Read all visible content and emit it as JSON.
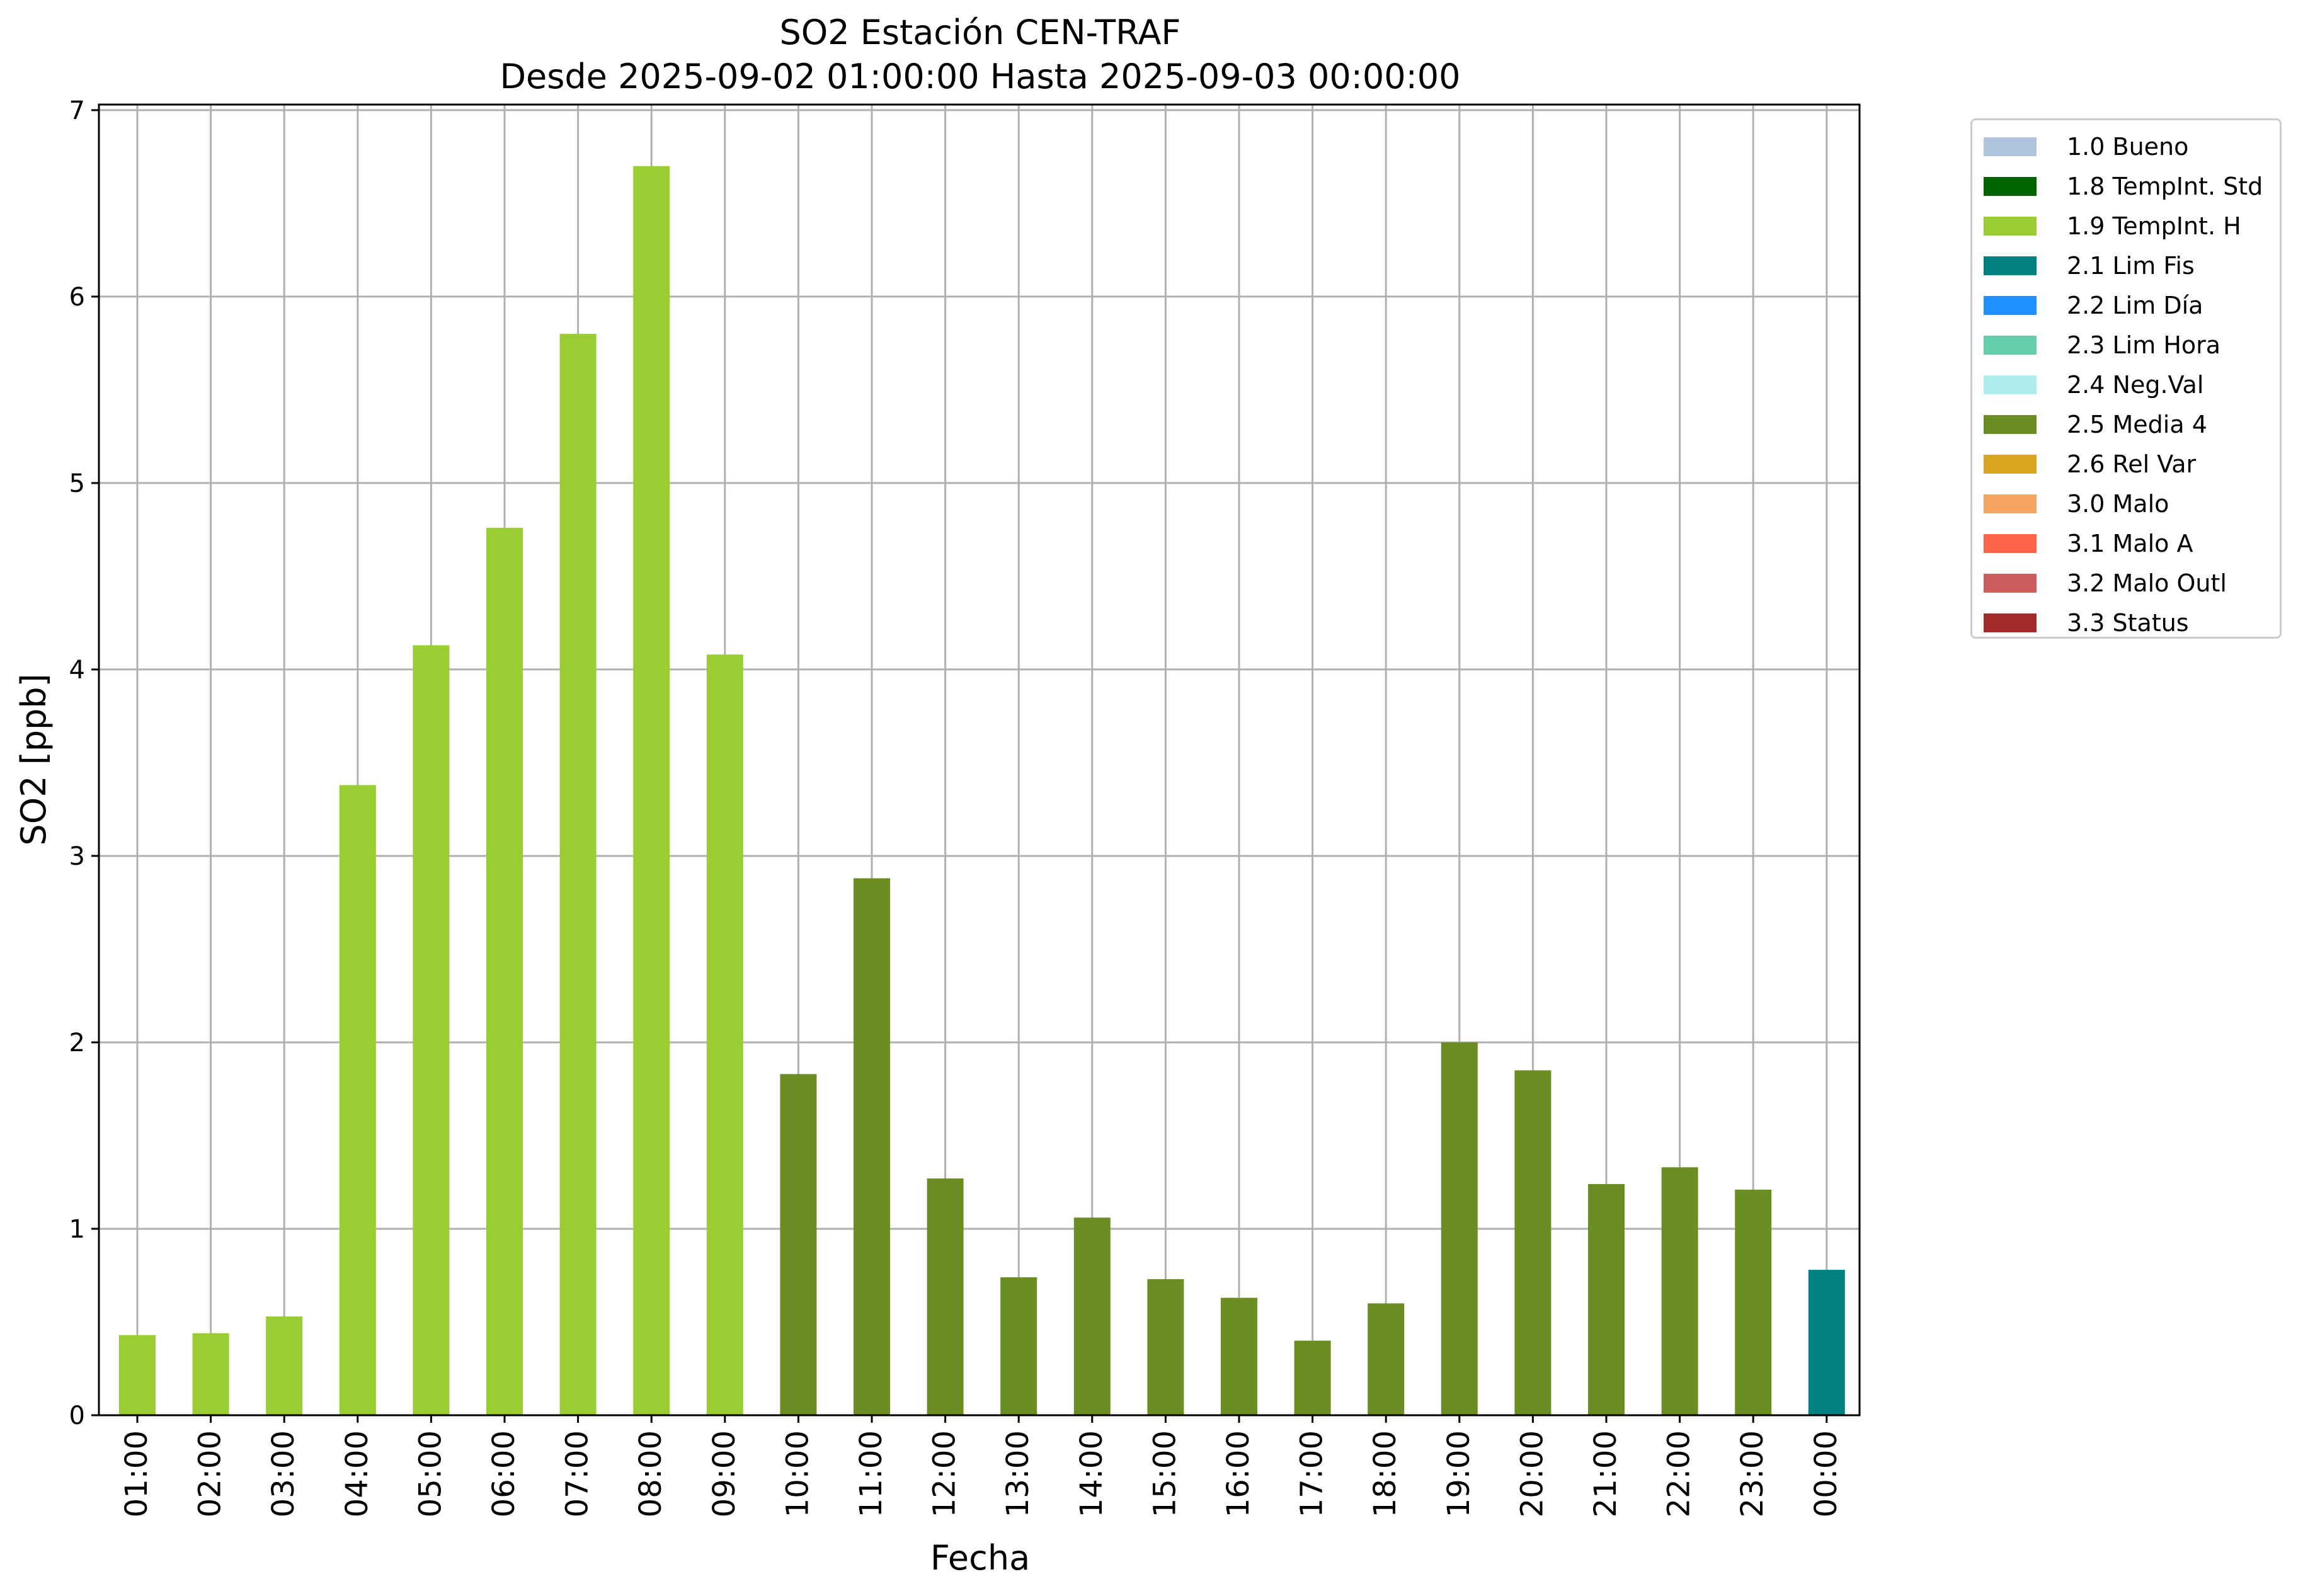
{
  "chart_data": {
    "type": "bar",
    "title": "SO2 Estación CEN-TRAF",
    "subtitle": "Desde 2025-09-02 01:00:00 Hasta 2025-09-03 00:00:00",
    "xlabel": "Fecha",
    "ylabel": "SO2 [ppb]",
    "ylim": [
      0,
      7.03
    ],
    "yticks": [
      "0",
      "1",
      "2",
      "3",
      "4",
      "5",
      "6",
      "7"
    ],
    "grid": true,
    "legend_position": "outside-right",
    "categories": [
      "01:00",
      "02:00",
      "03:00",
      "04:00",
      "05:00",
      "06:00",
      "07:00",
      "08:00",
      "09:00",
      "10:00",
      "11:00",
      "12:00",
      "13:00",
      "14:00",
      "15:00",
      "16:00",
      "17:00",
      "18:00",
      "19:00",
      "20:00",
      "21:00",
      "22:00",
      "23:00",
      "00:00"
    ],
    "values": [
      0.43,
      0.44,
      0.53,
      3.38,
      4.13,
      4.76,
      5.8,
      6.7,
      4.08,
      1.83,
      2.88,
      1.27,
      0.74,
      1.06,
      0.73,
      0.63,
      0.4,
      0.6,
      2.0,
      1.85,
      1.24,
      1.33,
      1.21,
      0.78
    ],
    "flags": [
      "1.9 TempInt. H",
      "1.9 TempInt. H",
      "1.9 TempInt. H",
      "1.9 TempInt. H",
      "1.9 TempInt. H",
      "1.9 TempInt. H",
      "1.9 TempInt. H",
      "1.9 TempInt. H",
      "1.9 TempInt. H",
      "2.5 Media 4",
      "2.5 Media 4",
      "2.5 Media 4",
      "2.5 Media 4",
      "2.5 Media 4",
      "2.5 Media 4",
      "2.5 Media 4",
      "2.5 Media 4",
      "2.5 Media 4",
      "2.5 Media 4",
      "2.5 Media 4",
      "2.5 Media 4",
      "2.5 Media 4",
      "2.5 Media 4",
      "2.1 Lim Fis"
    ],
    "legend": [
      {
        "label": "1.0 Bueno",
        "color": "#b0c4de"
      },
      {
        "label": "1.8 TempInt. Std",
        "color": "#006400"
      },
      {
        "label": "1.9 TempInt. H",
        "color": "#9acd32"
      },
      {
        "label": "2.1 Lim Fis",
        "color": "#008080"
      },
      {
        "label": "2.2 Lim Día",
        "color": "#1e90ff"
      },
      {
        "label": "2.3 Lim Hora",
        "color": "#66cdaa"
      },
      {
        "label": "2.4 Neg.Val",
        "color": "#afeeee"
      },
      {
        "label": "2.5 Media 4",
        "color": "#6b8e23"
      },
      {
        "label": "2.6 Rel Var",
        "color": "#daa520"
      },
      {
        "label": "3.0 Malo",
        "color": "#f4a460"
      },
      {
        "label": "3.1 Malo A",
        "color": "#ff6347"
      },
      {
        "label": "3.2 Malo Outl",
        "color": "#cd5c5c"
      },
      {
        "label": "3.3 Status",
        "color": "#a52a2a"
      }
    ]
  }
}
